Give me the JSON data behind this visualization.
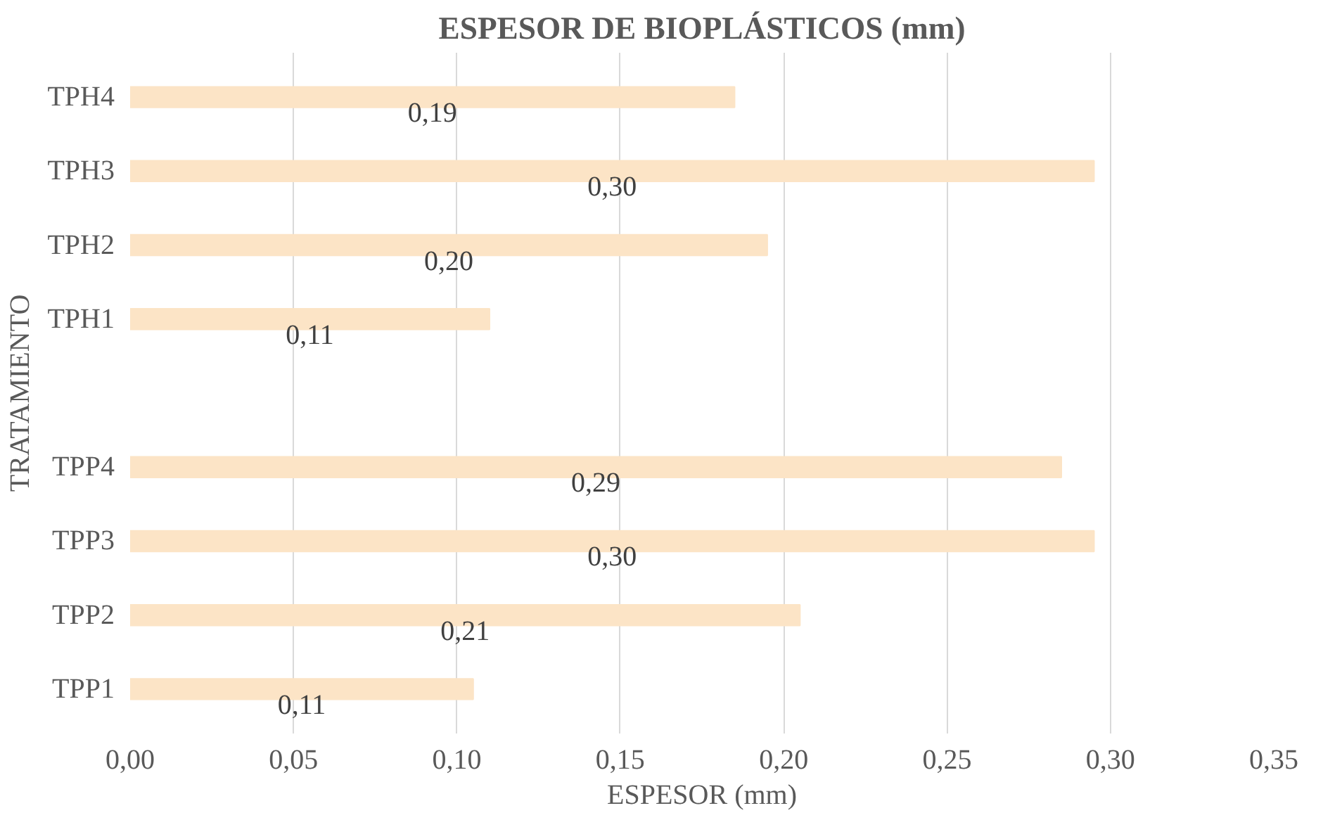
{
  "chart_data": {
    "type": "bar",
    "orientation": "horizontal",
    "title": "ESPESOR DE BIOPLÁSTICOS (mm)",
    "xlabel": "ESPESOR (mm)",
    "ylabel": "TRATAMIENTO",
    "categories": [
      "TPH4",
      "TPH3",
      "TPH2",
      "TPH1",
      null,
      "TPP4",
      "TPP3",
      "TPP2",
      "TPP1"
    ],
    "series": [
      {
        "color": "#fce4c6",
        "values": [
          0.185,
          0.295,
          0.195,
          0.11,
          null,
          0.285,
          0.295,
          0.205,
          0.105
        ],
        "value_labels": [
          "0,19",
          "0,30",
          "0,20",
          "0,11",
          null,
          "0,29",
          "0,30",
          "0,21",
          "0,11"
        ]
      }
    ],
    "xlim": [
      0,
      0.35
    ],
    "xticks": [
      {
        "value": 0,
        "label": "0,00"
      },
      {
        "value": 0.05,
        "label": "0,05"
      },
      {
        "value": 0.1,
        "label": "0,10"
      },
      {
        "value": 0.15,
        "label": "0,15"
      },
      {
        "value": 0.2,
        "label": "0,20"
      },
      {
        "value": 0.25,
        "label": "0,25"
      },
      {
        "value": 0.3,
        "label": "0,30"
      },
      {
        "value": 0.35,
        "label": "0,35"
      }
    ],
    "grid": "x"
  }
}
